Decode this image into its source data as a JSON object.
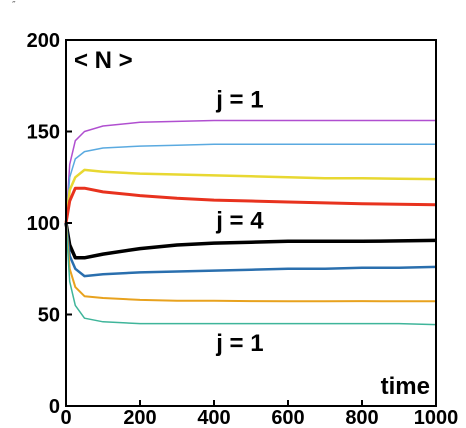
{
  "corner_mark": "″",
  "chart_data": {
    "type": "line",
    "title": "",
    "ylabel_annotation": "< N >",
    "xlabel": "time",
    "xlim": [
      0,
      1000
    ],
    "ylim": [
      0,
      200
    ],
    "xticks": [
      0,
      200,
      400,
      600,
      800,
      1000
    ],
    "yticks": [
      0,
      50,
      100,
      150,
      200
    ],
    "grid": false,
    "annotations": [
      {
        "text": "j = 1",
        "x": 470,
        "y": 163
      },
      {
        "text": "j = 4",
        "x": 470,
        "y": 97
      },
      {
        "text": "j = 1",
        "x": 470,
        "y": 30
      }
    ],
    "series": [
      {
        "color": "#b04fd0",
        "width": 1.5,
        "x": [
          0,
          10,
          25,
          50,
          100,
          200,
          300,
          400,
          500,
          600,
          700,
          800,
          900,
          1000
        ],
        "values": [
          100,
          132,
          145,
          150,
          153,
          155,
          155.5,
          156,
          156,
          156,
          156,
          156,
          156,
          156
        ]
      },
      {
        "color": "#5aaae0",
        "width": 1.5,
        "x": [
          0,
          10,
          25,
          50,
          100,
          200,
          300,
          400,
          500,
          600,
          700,
          800,
          900,
          1000
        ],
        "values": [
          100,
          125,
          135,
          139,
          141,
          142,
          142.5,
          143,
          143,
          143,
          143,
          143,
          143,
          143
        ]
      },
      {
        "color": "#e8d832",
        "width": 2.5,
        "x": [
          0,
          10,
          25,
          50,
          100,
          200,
          300,
          400,
          500,
          600,
          700,
          800,
          900,
          1000
        ],
        "values": [
          100,
          118,
          125,
          129,
          128,
          127,
          126.5,
          126,
          125.5,
          125,
          124.5,
          124.5,
          124.2,
          124
        ]
      },
      {
        "color": "#e8321e",
        "width": 3,
        "x": [
          0,
          10,
          25,
          50,
          100,
          200,
          300,
          400,
          500,
          600,
          700,
          800,
          900,
          1000
        ],
        "values": [
          100,
          112,
          119,
          119,
          117,
          115,
          113.5,
          112.5,
          112,
          111.5,
          111,
          110.5,
          110.3,
          110
        ]
      },
      {
        "color": "#000000",
        "width": 3.5,
        "x": [
          0,
          10,
          25,
          50,
          100,
          200,
          300,
          400,
          500,
          600,
          700,
          800,
          900,
          1000
        ],
        "values": [
          100,
          88,
          81,
          81,
          83,
          86,
          88,
          89,
          89.5,
          90,
          90,
          90,
          90.2,
          90.5
        ]
      },
      {
        "color": "#2a6fae",
        "width": 2.5,
        "x": [
          0,
          10,
          25,
          50,
          100,
          200,
          300,
          400,
          500,
          600,
          700,
          800,
          900,
          1000
        ],
        "values": [
          100,
          82,
          75,
          71,
          72,
          73,
          73.5,
          74,
          74.5,
          75,
          75,
          75.5,
          75.5,
          76
        ]
      },
      {
        "color": "#e8a21e",
        "width": 2,
        "x": [
          0,
          10,
          25,
          50,
          100,
          200,
          300,
          400,
          500,
          600,
          700,
          800,
          900,
          1000
        ],
        "values": [
          100,
          75,
          65,
          60,
          59,
          58,
          57.5,
          57.5,
          57.3,
          57.2,
          57.2,
          57.3,
          57.2,
          57.2
        ]
      },
      {
        "color": "#3fb59a",
        "width": 1.5,
        "x": [
          0,
          10,
          25,
          50,
          100,
          200,
          300,
          400,
          500,
          600,
          700,
          800,
          900,
          1000
        ],
        "values": [
          100,
          68,
          55,
          48,
          46,
          45,
          45,
          45,
          45,
          45,
          45,
          45,
          45,
          44.5
        ]
      }
    ]
  }
}
